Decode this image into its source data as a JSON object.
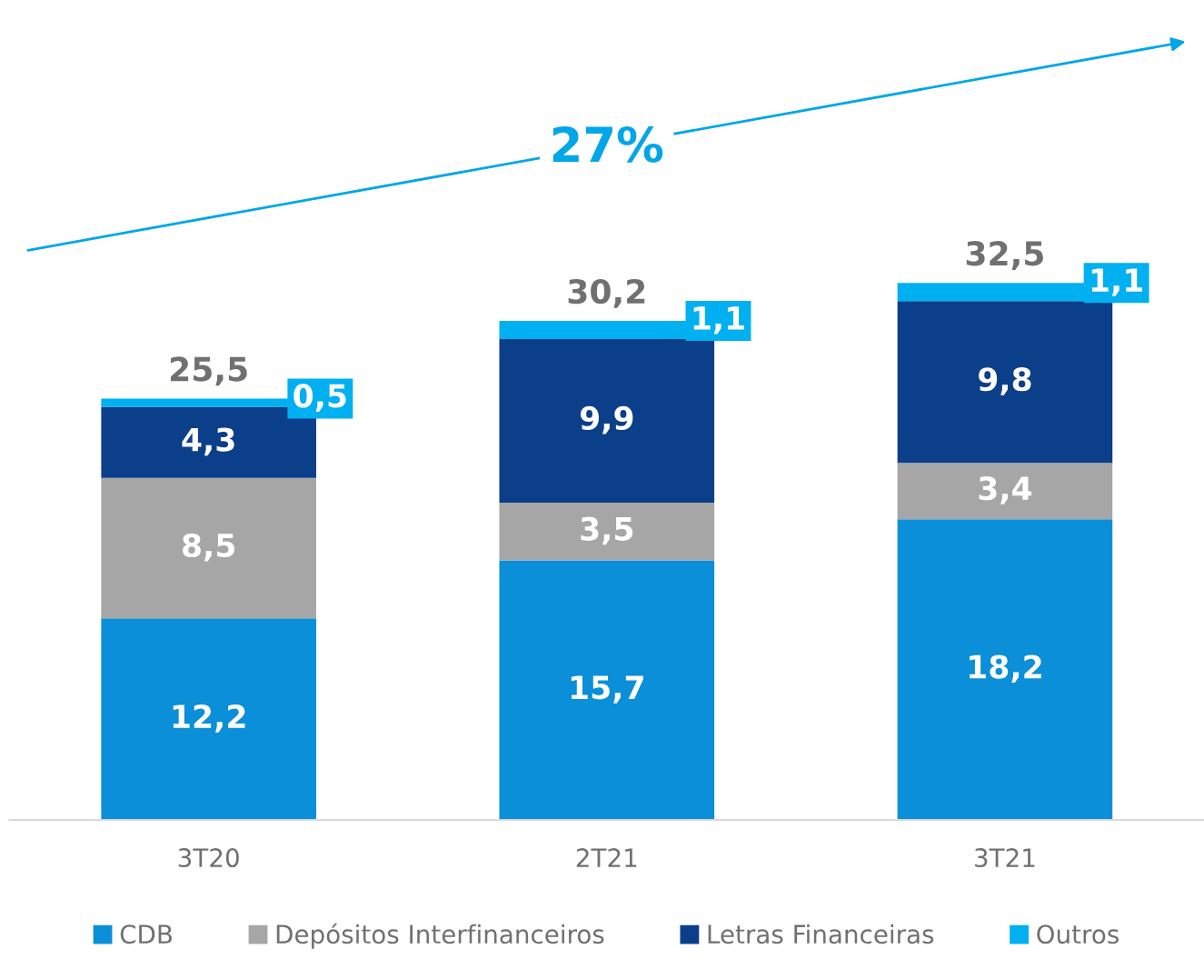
{
  "chart_data": {
    "type": "bar",
    "stacked": true,
    "categories": [
      "3T20",
      "2T21",
      "3T21"
    ],
    "series": [
      {
        "name": "CDB",
        "color": "#0a8fd8",
        "values": [
          12.2,
          15.7,
          18.2
        ],
        "value_labels": [
          "12,2",
          "15,7",
          "18,2"
        ]
      },
      {
        "name": "Depósitos Interfinanceiros",
        "color": "#a6a6a6",
        "values": [
          8.5,
          3.5,
          3.4
        ],
        "value_labels": [
          "8,5",
          "3,5",
          "3,4"
        ]
      },
      {
        "name": "Letras Financeiras",
        "color": "#0b3f8a",
        "values": [
          4.3,
          9.9,
          9.8
        ],
        "value_labels": [
          "4,3",
          "9,9",
          "9,8"
        ]
      },
      {
        "name": "Outros",
        "color": "#00b0f0",
        "values": [
          0.5,
          1.1,
          1.1
        ],
        "value_labels": [
          "0,5",
          "1,1",
          "1,1"
        ]
      }
    ],
    "totals": [
      "25,5",
      "30,2",
      "32,5"
    ],
    "annotations": [
      "27%"
    ],
    "legend": "bottom",
    "grid": false
  }
}
